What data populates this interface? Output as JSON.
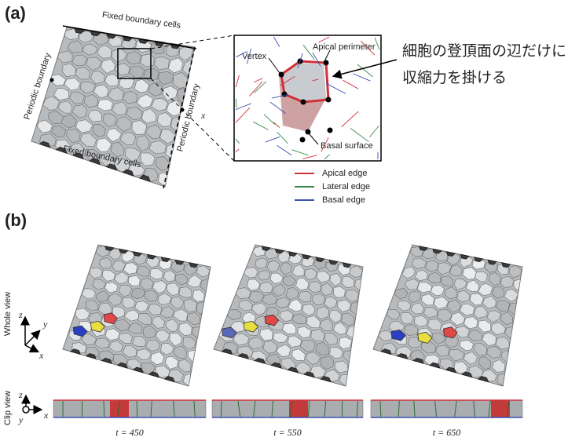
{
  "panel_a": {
    "label": "(a)",
    "top_boundary": "Fixed boundary cells",
    "bottom_boundary": "Fixed boundary cells",
    "left_boundary": "Periodic boundary",
    "right_boundary": "Periodic boundary",
    "axis_x": "x",
    "inset_labels": [
      "Vertex",
      "Apical perimeter",
      "Basal surface"
    ],
    "annotation": [
      "細胞の登頂面の辺だけに",
      "収縮力を掛ける"
    ],
    "legend": [
      {
        "name": "Apical edge",
        "color": "#d0303a"
      },
      {
        "name": "Lateral edge",
        "color": "#3a8a4a"
      },
      {
        "name": "Basal edge",
        "color": "#3a4fb0"
      }
    ]
  },
  "panel_b": {
    "label": "(b)",
    "row_labels": [
      "Whole view",
      "Clip view"
    ],
    "axes_whole": [
      "z",
      "y",
      "x"
    ],
    "axes_clip": [
      "z",
      "y",
      "x"
    ],
    "times": [
      "t = 450",
      "t = 550",
      "t = 650"
    ]
  }
}
